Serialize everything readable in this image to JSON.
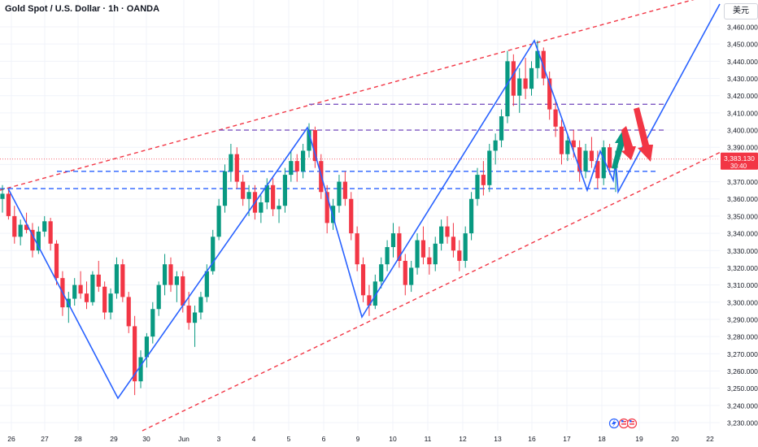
{
  "header": {
    "title": "Gold Spot / U.S. Dollar · 1h · OANDA",
    "currency_button": "美元"
  },
  "price_tag": {
    "value": "3,383.130",
    "countdown": "30:40"
  },
  "colors": {
    "bull": "#089981",
    "bear": "#f23645",
    "wave": "#2962ff",
    "channel": "#f23645",
    "level_purple": "#7e57c2",
    "level_blue": "#2962ff",
    "grid": "#f0f3fa"
  },
  "icons": [
    "lightning-icon",
    "us-flag-icon",
    "us-flag-icon"
  ],
  "chart_data": {
    "type": "candlestick",
    "symbol": "Gold Spot / U.S. Dollar",
    "interval": "1h",
    "ylim": [
      3225,
      3475
    ],
    "y_ticks": [
      3230,
      3240,
      3250,
      3260,
      3270,
      3280,
      3290,
      3300,
      3310,
      3320,
      3330,
      3340,
      3350,
      3360,
      3370,
      3380,
      3390,
      3400,
      3410,
      3420,
      3430,
      3440,
      3450,
      3460
    ],
    "y_tick_labels": [
      "3,230.000",
      "3,240.000",
      "3,250.000",
      "3,260.000",
      "3,270.000",
      "3,280.000",
      "3,290.000",
      "3,300.000",
      "3,310.000",
      "3,320.000",
      "3,330.000",
      "3,340.000",
      "3,350.000",
      "3,360.000",
      "3,370.000",
      "3,380.000",
      "3,390.000",
      "3,400.000",
      "3,410.000",
      "3,420.000",
      "3,430.000",
      "3,440.000",
      "3,450.000",
      "3,460.000"
    ],
    "x_axis": [
      "26",
      "27",
      "28",
      "29",
      "30",
      "Jun",
      "3",
      "4",
      "5",
      "6",
      "9",
      "10",
      "11",
      "12",
      "13",
      "16",
      "17",
      "18",
      "19",
      "20",
      "22"
    ],
    "wave_points": [
      {
        "date": "May 23",
        "price": 3366
      },
      {
        "date": "May 29",
        "price": 3245
      },
      {
        "date": "Jun 5",
        "price": 3403
      },
      {
        "date": "Jun 9",
        "price": 3292
      },
      {
        "date": "Jun 16",
        "price": 3452
      },
      {
        "date": "Jun 17",
        "price": 3367
      },
      {
        "date": "Jun 17",
        "price": 3393
      },
      {
        "date": "Jun 18",
        "price": 3366
      },
      {
        "date": "Jun 18",
        "price": 3394
      },
      {
        "date": "Jun 18",
        "price": 3364
      },
      {
        "date": "Jun 22",
        "price": 3478
      }
    ],
    "horizontal_levels": [
      {
        "price": 3415,
        "style": "dashed",
        "color": "purple"
      },
      {
        "price": 3400,
        "style": "dashed",
        "color": "purple"
      },
      {
        "price": 3376,
        "style": "dashed",
        "color": "blue"
      },
      {
        "price": 3366,
        "style": "dashed",
        "color": "blue"
      }
    ],
    "channel_upper": [
      {
        "date": "May 23",
        "price": 3366
      },
      {
        "date": "Jun 22",
        "price": 3480
      }
    ],
    "channel_lower": [
      {
        "date": "Jun 2",
        "price": 3225
      },
      {
        "date": "Jun 22",
        "price": 3386
      }
    ],
    "forecast_arrows": [
      {
        "direction": "up",
        "color": "green"
      },
      {
        "direction": "down",
        "color": "red"
      },
      {
        "direction": "down",
        "color": "red"
      }
    ],
    "candles": [
      {
        "o": 3360,
        "h": 3368,
        "l": 3352,
        "c": 3363
      },
      {
        "o": 3363,
        "h": 3366,
        "l": 3348,
        "c": 3350
      },
      {
        "o": 3350,
        "h": 3356,
        "l": 3334,
        "c": 3338
      },
      {
        "o": 3338,
        "h": 3348,
        "l": 3333,
        "c": 3345
      },
      {
        "o": 3345,
        "h": 3352,
        "l": 3340,
        "c": 3342
      },
      {
        "o": 3342,
        "h": 3346,
        "l": 3326,
        "c": 3330
      },
      {
        "o": 3330,
        "h": 3344,
        "l": 3328,
        "c": 3341
      },
      {
        "o": 3341,
        "h": 3350,
        "l": 3338,
        "c": 3347
      },
      {
        "o": 3347,
        "h": 3349,
        "l": 3330,
        "c": 3334
      },
      {
        "o": 3334,
        "h": 3336,
        "l": 3310,
        "c": 3314
      },
      {
        "o": 3314,
        "h": 3318,
        "l": 3292,
        "c": 3297
      },
      {
        "o": 3297,
        "h": 3306,
        "l": 3288,
        "c": 3302
      },
      {
        "o": 3302,
        "h": 3314,
        "l": 3298,
        "c": 3310
      },
      {
        "o": 3310,
        "h": 3318,
        "l": 3302,
        "c": 3305
      },
      {
        "o": 3305,
        "h": 3312,
        "l": 3296,
        "c": 3300
      },
      {
        "o": 3300,
        "h": 3318,
        "l": 3298,
        "c": 3316
      },
      {
        "o": 3316,
        "h": 3324,
        "l": 3306,
        "c": 3309
      },
      {
        "o": 3309,
        "h": 3312,
        "l": 3290,
        "c": 3294
      },
      {
        "o": 3294,
        "h": 3308,
        "l": 3290,
        "c": 3305
      },
      {
        "o": 3305,
        "h": 3326,
        "l": 3302,
        "c": 3322
      },
      {
        "o": 3322,
        "h": 3325,
        "l": 3300,
        "c": 3303
      },
      {
        "o": 3303,
        "h": 3306,
        "l": 3282,
        "c": 3286
      },
      {
        "o": 3286,
        "h": 3292,
        "l": 3246,
        "c": 3254
      },
      {
        "o": 3254,
        "h": 3272,
        "l": 3250,
        "c": 3268
      },
      {
        "o": 3268,
        "h": 3282,
        "l": 3262,
        "c": 3280
      },
      {
        "o": 3280,
        "h": 3300,
        "l": 3276,
        "c": 3296
      },
      {
        "o": 3296,
        "h": 3312,
        "l": 3292,
        "c": 3310
      },
      {
        "o": 3310,
        "h": 3328,
        "l": 3304,
        "c": 3322
      },
      {
        "o": 3322,
        "h": 3326,
        "l": 3306,
        "c": 3310
      },
      {
        "o": 3310,
        "h": 3318,
        "l": 3300,
        "c": 3315
      },
      {
        "o": 3315,
        "h": 3318,
        "l": 3294,
        "c": 3298
      },
      {
        "o": 3298,
        "h": 3306,
        "l": 3284,
        "c": 3288
      },
      {
        "o": 3288,
        "h": 3298,
        "l": 3274,
        "c": 3294
      },
      {
        "o": 3294,
        "h": 3306,
        "l": 3290,
        "c": 3303
      },
      {
        "o": 3303,
        "h": 3322,
        "l": 3300,
        "c": 3318
      },
      {
        "o": 3318,
        "h": 3342,
        "l": 3316,
        "c": 3338
      },
      {
        "o": 3338,
        "h": 3360,
        "l": 3336,
        "c": 3356
      },
      {
        "o": 3356,
        "h": 3380,
        "l": 3352,
        "c": 3376
      },
      {
        "o": 3376,
        "h": 3392,
        "l": 3370,
        "c": 3386
      },
      {
        "o": 3386,
        "h": 3390,
        "l": 3366,
        "c": 3370
      },
      {
        "o": 3370,
        "h": 3374,
        "l": 3356,
        "c": 3360
      },
      {
        "o": 3360,
        "h": 3368,
        "l": 3350,
        "c": 3364
      },
      {
        "o": 3364,
        "h": 3368,
        "l": 3348,
        "c": 3352
      },
      {
        "o": 3352,
        "h": 3362,
        "l": 3346,
        "c": 3358
      },
      {
        "o": 3358,
        "h": 3372,
        "l": 3354,
        "c": 3368
      },
      {
        "o": 3368,
        "h": 3372,
        "l": 3350,
        "c": 3354
      },
      {
        "o": 3354,
        "h": 3360,
        "l": 3346,
        "c": 3356
      },
      {
        "o": 3356,
        "h": 3378,
        "l": 3352,
        "c": 3374
      },
      {
        "o": 3374,
        "h": 3388,
        "l": 3370,
        "c": 3382
      },
      {
        "o": 3382,
        "h": 3386,
        "l": 3370,
        "c": 3376
      },
      {
        "o": 3376,
        "h": 3392,
        "l": 3372,
        "c": 3388
      },
      {
        "o": 3388,
        "h": 3404,
        "l": 3384,
        "c": 3400
      },
      {
        "o": 3400,
        "h": 3402,
        "l": 3378,
        "c": 3382
      },
      {
        "o": 3382,
        "h": 3386,
        "l": 3360,
        "c": 3364
      },
      {
        "o": 3364,
        "h": 3368,
        "l": 3340,
        "c": 3346
      },
      {
        "o": 3346,
        "h": 3360,
        "l": 3342,
        "c": 3356
      },
      {
        "o": 3356,
        "h": 3374,
        "l": 3352,
        "c": 3370
      },
      {
        "o": 3370,
        "h": 3376,
        "l": 3356,
        "c": 3360
      },
      {
        "o": 3360,
        "h": 3364,
        "l": 3336,
        "c": 3340
      },
      {
        "o": 3340,
        "h": 3344,
        "l": 3318,
        "c": 3322
      },
      {
        "o": 3322,
        "h": 3326,
        "l": 3300,
        "c": 3304
      },
      {
        "o": 3304,
        "h": 3310,
        "l": 3292,
        "c": 3298
      },
      {
        "o": 3298,
        "h": 3316,
        "l": 3296,
        "c": 3312
      },
      {
        "o": 3312,
        "h": 3326,
        "l": 3308,
        "c": 3322
      },
      {
        "o": 3322,
        "h": 3336,
        "l": 3318,
        "c": 3332
      },
      {
        "o": 3332,
        "h": 3346,
        "l": 3326,
        "c": 3340
      },
      {
        "o": 3340,
        "h": 3344,
        "l": 3320,
        "c": 3324
      },
      {
        "o": 3324,
        "h": 3328,
        "l": 3304,
        "c": 3310
      },
      {
        "o": 3310,
        "h": 3324,
        "l": 3306,
        "c": 3320
      },
      {
        "o": 3320,
        "h": 3340,
        "l": 3316,
        "c": 3336
      },
      {
        "o": 3336,
        "h": 3344,
        "l": 3322,
        "c": 3326
      },
      {
        "o": 3326,
        "h": 3332,
        "l": 3316,
        "c": 3322
      },
      {
        "o": 3322,
        "h": 3338,
        "l": 3318,
        "c": 3334
      },
      {
        "o": 3334,
        "h": 3348,
        "l": 3330,
        "c": 3344
      },
      {
        "o": 3344,
        "h": 3350,
        "l": 3334,
        "c": 3338
      },
      {
        "o": 3338,
        "h": 3346,
        "l": 3326,
        "c": 3330
      },
      {
        "o": 3330,
        "h": 3336,
        "l": 3318,
        "c": 3324
      },
      {
        "o": 3324,
        "h": 3344,
        "l": 3320,
        "c": 3340
      },
      {
        "o": 3340,
        "h": 3364,
        "l": 3336,
        "c": 3360
      },
      {
        "o": 3360,
        "h": 3378,
        "l": 3356,
        "c": 3374
      },
      {
        "o": 3374,
        "h": 3382,
        "l": 3362,
        "c": 3368
      },
      {
        "o": 3368,
        "h": 3392,
        "l": 3364,
        "c": 3388
      },
      {
        "o": 3388,
        "h": 3398,
        "l": 3380,
        "c": 3394
      },
      {
        "o": 3394,
        "h": 3412,
        "l": 3390,
        "c": 3408
      },
      {
        "o": 3408,
        "h": 3446,
        "l": 3404,
        "c": 3440
      },
      {
        "o": 3440,
        "h": 3444,
        "l": 3414,
        "c": 3420
      },
      {
        "o": 3420,
        "h": 3436,
        "l": 3410,
        "c": 3430
      },
      {
        "o": 3430,
        "h": 3442,
        "l": 3418,
        "c": 3424
      },
      {
        "o": 3424,
        "h": 3440,
        "l": 3420,
        "c": 3436
      },
      {
        "o": 3436,
        "h": 3452,
        "l": 3430,
        "c": 3446
      },
      {
        "o": 3446,
        "h": 3448,
        "l": 3426,
        "c": 3430
      },
      {
        "o": 3430,
        "h": 3434,
        "l": 3406,
        "c": 3412
      },
      {
        "o": 3412,
        "h": 3418,
        "l": 3396,
        "c": 3402
      },
      {
        "o": 3402,
        "h": 3406,
        "l": 3380,
        "c": 3386
      },
      {
        "o": 3386,
        "h": 3398,
        "l": 3382,
        "c": 3394
      },
      {
        "o": 3394,
        "h": 3400,
        "l": 3384,
        "c": 3390
      },
      {
        "o": 3390,
        "h": 3394,
        "l": 3370,
        "c": 3376
      },
      {
        "o": 3376,
        "h": 3392,
        "l": 3372,
        "c": 3388
      },
      {
        "o": 3388,
        "h": 3396,
        "l": 3378,
        "c": 3382
      },
      {
        "o": 3382,
        "h": 3388,
        "l": 3366,
        "c": 3372
      },
      {
        "o": 3372,
        "h": 3394,
        "l": 3368,
        "c": 3390
      },
      {
        "o": 3390,
        "h": 3392,
        "l": 3374,
        "c": 3378
      },
      {
        "o": 3378,
        "h": 3388,
        "l": 3364,
        "c": 3383
      }
    ]
  }
}
